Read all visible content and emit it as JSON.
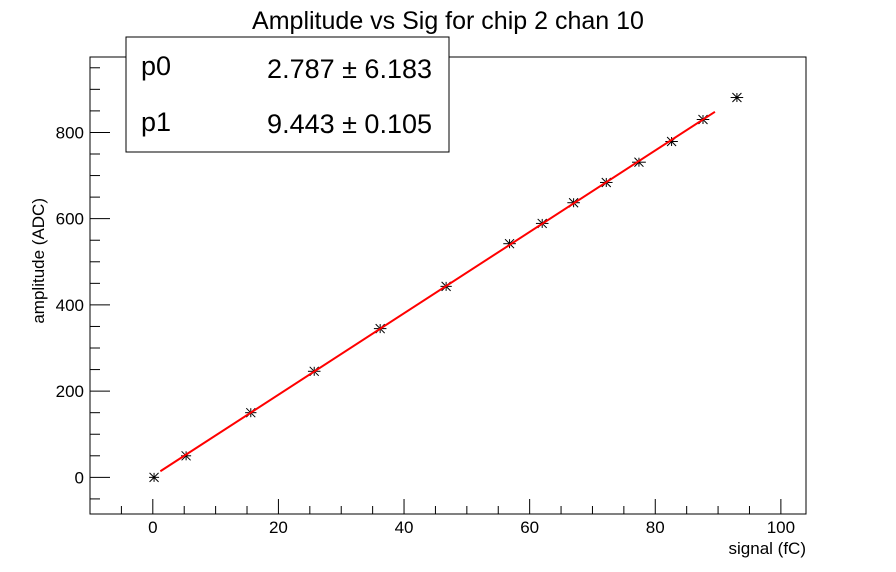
{
  "chart_data": {
    "type": "scatter",
    "title": "Amplitude vs Sig for chip 2 chan 10",
    "xlabel": "signal (fC)",
    "ylabel": "amplitude (ADC)",
    "xlim": [
      -10,
      104
    ],
    "ylim": [
      -85,
      975
    ],
    "x_ticks": [
      0,
      20,
      40,
      60,
      80,
      100
    ],
    "y_ticks": [
      0,
      200,
      400,
      600,
      800
    ],
    "grid": false,
    "legend": "none",
    "series": [
      {
        "color": "#000000",
        "marker": "star",
        "x": [
          0.2,
          5.3,
          15.6,
          25.7,
          36.2,
          46.7,
          56.8,
          62.0,
          67.0,
          72.2,
          77.4,
          82.6,
          87.6,
          93.0
        ],
        "y": [
          0,
          50,
          150,
          246,
          345,
          443,
          542,
          589,
          637,
          684,
          731,
          779,
          830,
          881
        ],
        "xerr": [
          0.8,
          0.8,
          0.9,
          1.0,
          1.0,
          0.9,
          1.0,
          1.0,
          1.0,
          1.0,
          1.1,
          1.0,
          1.0,
          1.0
        ]
      }
    ],
    "fit": {
      "color": "#ff0000",
      "p0": 2.787,
      "p1": 9.443,
      "x_range": [
        1.2,
        89.5
      ]
    },
    "stats_box": {
      "rows": [
        {
          "name": "p0",
          "value": "2.787 ± 6.183"
        },
        {
          "name": "p1",
          "value": "9.443 ± 0.105"
        }
      ]
    }
  }
}
